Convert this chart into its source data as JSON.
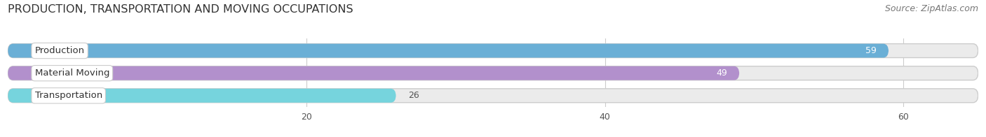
{
  "title": "PRODUCTION, TRANSPORTATION AND MOVING OCCUPATIONS",
  "source": "Source: ZipAtlas.com",
  "categories": [
    "Production",
    "Material Moving",
    "Transportation"
  ],
  "values": [
    59,
    49,
    26
  ],
  "bar_colors": [
    "#6aafd6",
    "#b290cc",
    "#76d4dd"
  ],
  "background_color": "#ffffff",
  "bar_bg_color": "#ebebeb",
  "xlim": [
    0,
    65
  ],
  "xticks": [
    20,
    40,
    60
  ],
  "title_fontsize": 11.5,
  "source_fontsize": 9,
  "label_fontsize": 9.5,
  "value_fontsize": 9,
  "bar_height": 0.62,
  "figsize": [
    14.06,
    1.96
  ],
  "dpi": 100
}
